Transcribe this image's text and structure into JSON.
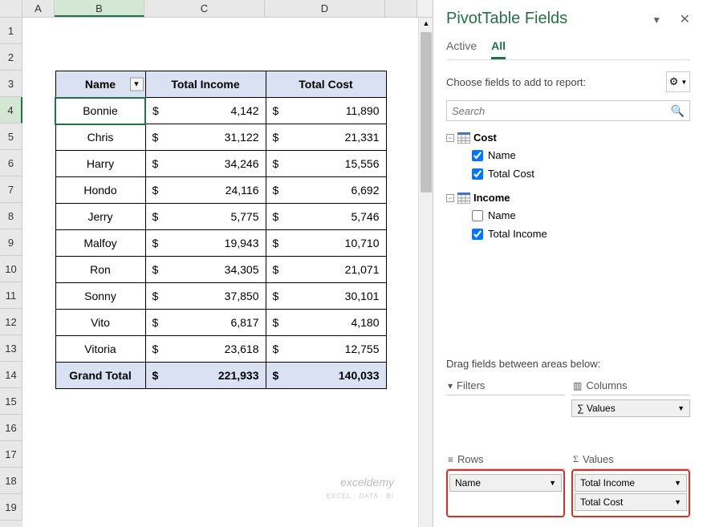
{
  "columns": [
    "A",
    "B",
    "C",
    "D"
  ],
  "row_numbers": [
    1,
    2,
    3,
    4,
    5,
    6,
    7,
    8,
    9,
    10,
    11,
    12,
    13,
    14,
    15,
    16,
    17,
    18,
    19
  ],
  "selected_cell": "B4",
  "pivot": {
    "headers": [
      "Name",
      "Total Income",
      "Total Cost"
    ],
    "rows": [
      {
        "name": "Bonnie",
        "income": "4,142",
        "cost": "11,890"
      },
      {
        "name": "Chris",
        "income": "31,122",
        "cost": "21,331"
      },
      {
        "name": "Harry",
        "income": "34,246",
        "cost": "15,556"
      },
      {
        "name": "Hondo",
        "income": "24,116",
        "cost": "6,692"
      },
      {
        "name": "Jerry",
        "income": "5,775",
        "cost": "5,746"
      },
      {
        "name": "Malfoy",
        "income": "19,943",
        "cost": "10,710"
      },
      {
        "name": "Ron",
        "income": "34,305",
        "cost": "21,071"
      },
      {
        "name": "Sonny",
        "income": "37,850",
        "cost": "30,101"
      },
      {
        "name": "Vito",
        "income": "6,817",
        "cost": "4,180"
      },
      {
        "name": "Vitoria",
        "income": "23,618",
        "cost": "12,755"
      }
    ],
    "grand_total": {
      "label": "Grand Total",
      "income": "221,933",
      "cost": "140,033"
    },
    "currency": "$"
  },
  "watermark": "exceldemy",
  "watermark_sub": "EXCEL · DATA · BI",
  "panel": {
    "title": "PivotTable Fields",
    "tabs": {
      "active": "Active",
      "all": "All"
    },
    "choose_label": "Choose fields to add to report:",
    "search_placeholder": "Search",
    "groups": [
      {
        "name": "Cost",
        "fields": [
          {
            "label": "Name",
            "checked": true
          },
          {
            "label": "Total Cost",
            "checked": true
          }
        ]
      },
      {
        "name": "Income",
        "fields": [
          {
            "label": "Name",
            "checked": false
          },
          {
            "label": "Total Income",
            "checked": true
          }
        ]
      }
    ],
    "drag_label": "Drag fields between areas below:",
    "areas": {
      "filters": {
        "label": "Filters",
        "items": []
      },
      "columns": {
        "label": "Columns",
        "items": [
          "∑ Values"
        ]
      },
      "rows": {
        "label": "Rows",
        "items": [
          "Name"
        ]
      },
      "values": {
        "label": "Values",
        "items": [
          "Total Income",
          "Total Cost"
        ]
      }
    }
  }
}
